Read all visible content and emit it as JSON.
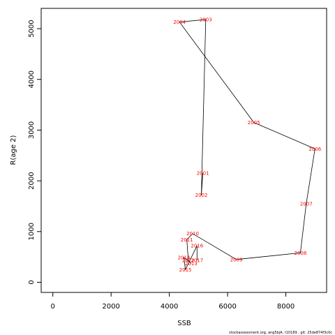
{
  "chart_data": {
    "type": "line",
    "title": "",
    "xlabel": "SSB",
    "ylabel": "R(age 2)",
    "xlim": [
      -400,
      9400
    ],
    "ylim": [
      -200,
      5400
    ],
    "x_ticks": [
      0,
      2000,
      4000,
      6000,
      8000
    ],
    "y_ticks": [
      0,
      1000,
      2000,
      3000,
      4000,
      5000
    ],
    "grid": false,
    "line_color": "#000000",
    "label_color": "#ff0000",
    "points": [
      {
        "year": "2001",
        "x": 5150,
        "y": 2150
      },
      {
        "year": "2002",
        "x": 5100,
        "y": 1720
      },
      {
        "year": "2003",
        "x": 5250,
        "y": 5180
      },
      {
        "year": "2004",
        "x": 4350,
        "y": 5130
      },
      {
        "year": "2005",
        "x": 6900,
        "y": 3150
      },
      {
        "year": "2006",
        "x": 9000,
        "y": 2630
      },
      {
        "year": "2007",
        "x": 8700,
        "y": 1550
      },
      {
        "year": "2008",
        "x": 8500,
        "y": 580
      },
      {
        "year": "2009",
        "x": 6300,
        "y": 450
      },
      {
        "year": "2010",
        "x": 4800,
        "y": 960
      },
      {
        "year": "2011",
        "x": 4600,
        "y": 840
      },
      {
        "year": "2012",
        "x": 4650,
        "y": 430
      },
      {
        "year": "2013",
        "x": 4750,
        "y": 370
      },
      {
        "year": "2014",
        "x": 4500,
        "y": 490
      },
      {
        "year": "2015",
        "x": 4550,
        "y": 250
      },
      {
        "year": "2016",
        "x": 4950,
        "y": 720
      },
      {
        "year": "2017",
        "x": 4950,
        "y": 430
      }
    ]
  },
  "footer": "stockassessment.org, ang5bjA, r10189 , git: 25de874f3c0c"
}
